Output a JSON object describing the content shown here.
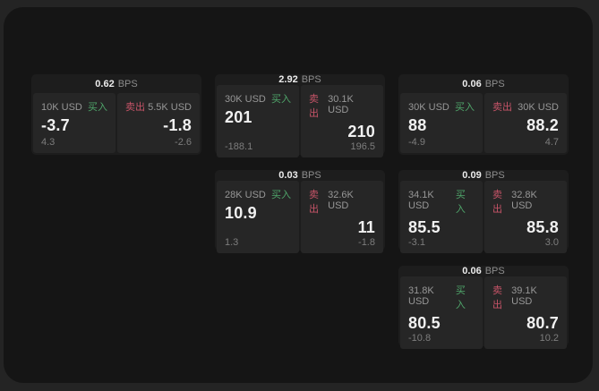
{
  "labels": {
    "bps_unit": "BPS",
    "buy": "买入",
    "sell": "卖出"
  },
  "colors": {
    "buy_green": "#4fa56a",
    "sell_red": "#c75468",
    "outer_background": "#242424",
    "panel_background": "#151515",
    "card_background": "#1d1d1d",
    "tile_background": "#262626"
  },
  "cards": [
    {
      "bps": "0.62",
      "buy": {
        "size": "10K USD",
        "value": "-3.7",
        "delta": "4.3"
      },
      "sell": {
        "size": "5.5K USD",
        "value": "-1.8",
        "delta": "-2.6"
      }
    },
    {
      "bps": "2.92",
      "buy": {
        "size": "30K USD",
        "value": "201",
        "delta": "-188.1"
      },
      "sell": {
        "size": "30.1K USD",
        "value": "210",
        "delta": "196.5"
      }
    },
    {
      "bps": "0.06",
      "buy": {
        "size": "30K USD",
        "value": "88",
        "delta": "-4.9"
      },
      "sell": {
        "size": "30K USD",
        "value": "88.2",
        "delta": "4.7"
      }
    },
    {
      "bps": "0.03",
      "buy": {
        "size": "28K USD",
        "value": "10.9",
        "delta": "1.3"
      },
      "sell": {
        "size": "32.6K USD",
        "value": "11",
        "delta": "-1.8"
      }
    },
    {
      "bps": "0.09",
      "buy": {
        "size": "34.1K USD",
        "value": "85.5",
        "delta": "-3.1"
      },
      "sell": {
        "size": "32.8K USD",
        "value": "85.8",
        "delta": "3.0"
      }
    },
    {
      "bps": "0.06",
      "buy": {
        "size": "31.8K USD",
        "value": "80.5",
        "delta": "-10.8"
      },
      "sell": {
        "size": "39.1K USD",
        "value": "80.7",
        "delta": "10.2"
      }
    }
  ]
}
